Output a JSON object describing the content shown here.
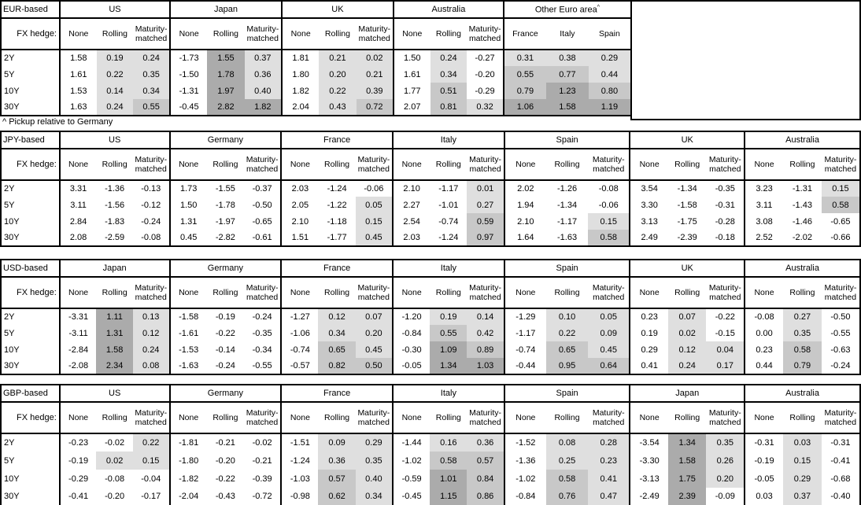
{
  "footnote": "^ Pickup relative to Germany",
  "fx_hedge_label": "FX hedge:",
  "hedge_cols": [
    "None",
    "Rolling",
    "Maturity-matched"
  ],
  "row_labels": [
    "2Y",
    "5Y",
    "10Y",
    "30Y"
  ],
  "shading": {
    "negative_color": "#ffffff",
    "bands": [
      {
        "min": 0.0,
        "color": "#dfdfdf"
      },
      {
        "min": 0.5,
        "color": "#c8c8c8"
      },
      {
        "min": 1.0,
        "color": "#ababab"
      }
    ]
  },
  "tables": [
    {
      "base_label": "EUR-based",
      "groups": [
        {
          "name": "US",
          "shade_cols": [
            1,
            2
          ],
          "rows": [
            [
              "1.58",
              "0.19",
              "0.24"
            ],
            [
              "1.61",
              "0.22",
              "0.35"
            ],
            [
              "1.53",
              "0.14",
              "0.34"
            ],
            [
              "1.63",
              "0.24",
              "0.55"
            ]
          ]
        },
        {
          "name": "Japan",
          "shade_cols": [
            1,
            2
          ],
          "rows": [
            [
              "-1.73",
              "1.55",
              "0.37"
            ],
            [
              "-1.50",
              "1.78",
              "0.36"
            ],
            [
              "-1.31",
              "1.97",
              "0.40"
            ],
            [
              "-0.45",
              "2.82",
              "1.82"
            ]
          ]
        },
        {
          "name": "UK",
          "shade_cols": [
            1,
            2
          ],
          "rows": [
            [
              "1.81",
              "0.21",
              "0.02"
            ],
            [
              "1.80",
              "0.20",
              "0.21"
            ],
            [
              "1.82",
              "0.22",
              "0.39"
            ],
            [
              "2.04",
              "0.43",
              "0.72"
            ]
          ]
        },
        {
          "name": "Australia",
          "shade_cols": [
            1,
            2
          ],
          "rows": [
            [
              "1.50",
              "0.24",
              "-0.27"
            ],
            [
              "1.61",
              "0.34",
              "-0.20"
            ],
            [
              "1.77",
              "0.51",
              "-0.29"
            ],
            [
              "2.07",
              "0.81",
              "0.32"
            ]
          ]
        },
        {
          "name": "Other Euro area",
          "superscript": "^",
          "cols": [
            "France",
            "Italy",
            "Spain"
          ],
          "shade_cols": [
            0,
            1,
            2
          ],
          "rows": [
            [
              "0.31",
              "0.38",
              "0.29"
            ],
            [
              "0.55",
              "0.77",
              "0.44"
            ],
            [
              "0.79",
              "1.23",
              "0.80"
            ],
            [
              "1.06",
              "1.58",
              "1.19"
            ]
          ]
        }
      ]
    },
    {
      "base_label": "JPY-based",
      "groups": [
        {
          "name": "US",
          "shade_cols": [
            1,
            2
          ],
          "rows": [
            [
              "3.31",
              "-1.36",
              "-0.13"
            ],
            [
              "3.11",
              "-1.56",
              "-0.12"
            ],
            [
              "2.84",
              "-1.83",
              "-0.24"
            ],
            [
              "2.08",
              "-2.59",
              "-0.08"
            ]
          ]
        },
        {
          "name": "Germany",
          "shade_cols": [
            1,
            2
          ],
          "rows": [
            [
              "1.73",
              "-1.55",
              "-0.37"
            ],
            [
              "1.50",
              "-1.78",
              "-0.50"
            ],
            [
              "1.31",
              "-1.97",
              "-0.65"
            ],
            [
              "0.45",
              "-2.82",
              "-0.61"
            ]
          ]
        },
        {
          "name": "France",
          "shade_cols": [
            1,
            2
          ],
          "rows": [
            [
              "2.03",
              "-1.24",
              "-0.06"
            ],
            [
              "2.05",
              "-1.22",
              "0.05"
            ],
            [
              "2.10",
              "-1.18",
              "0.15"
            ],
            [
              "1.51",
              "-1.77",
              "0.45"
            ]
          ]
        },
        {
          "name": "Italy",
          "shade_cols": [
            1,
            2
          ],
          "rows": [
            [
              "2.10",
              "-1.17",
              "0.01"
            ],
            [
              "2.27",
              "-1.01",
              "0.27"
            ],
            [
              "2.54",
              "-0.74",
              "0.59"
            ],
            [
              "2.03",
              "-1.24",
              "0.97"
            ]
          ]
        },
        {
          "name": "Spain",
          "shade_cols": [
            1,
            2
          ],
          "rows": [
            [
              "2.02",
              "-1.26",
              "-0.08"
            ],
            [
              "1.94",
              "-1.34",
              "-0.06"
            ],
            [
              "2.10",
              "-1.17",
              "0.15"
            ],
            [
              "1.64",
              "-1.63",
              "0.58"
            ]
          ]
        },
        {
          "name": "UK",
          "shade_cols": [
            1,
            2
          ],
          "rows": [
            [
              "3.54",
              "-1.34",
              "-0.35"
            ],
            [
              "3.30",
              "-1.58",
              "-0.31"
            ],
            [
              "3.13",
              "-1.75",
              "-0.28"
            ],
            [
              "2.49",
              "-2.39",
              "-0.18"
            ]
          ]
        },
        {
          "name": "Australia",
          "shade_cols": [
            1,
            2
          ],
          "rows": [
            [
              "3.23",
              "-1.31",
              "0.15"
            ],
            [
              "3.11",
              "-1.43",
              "0.58"
            ],
            [
              "3.08",
              "-1.46",
              "-0.65"
            ],
            [
              "2.52",
              "-2.02",
              "-0.66"
            ]
          ]
        }
      ]
    },
    {
      "base_label": "USD-based",
      "groups": [
        {
          "name": "Japan",
          "shade_cols": [
            1,
            2
          ],
          "rows": [
            [
              "-3.31",
              "1.11",
              "0.13"
            ],
            [
              "-3.11",
              "1.31",
              "0.12"
            ],
            [
              "-2.84",
              "1.58",
              "0.24"
            ],
            [
              "-2.08",
              "2.34",
              "0.08"
            ]
          ]
        },
        {
          "name": "Germany",
          "shade_cols": [
            1,
            2
          ],
          "rows": [
            [
              "-1.58",
              "-0.19",
              "-0.24"
            ],
            [
              "-1.61",
              "-0.22",
              "-0.35"
            ],
            [
              "-1.53",
              "-0.14",
              "-0.34"
            ],
            [
              "-1.63",
              "-0.24",
              "-0.55"
            ]
          ]
        },
        {
          "name": "France",
          "shade_cols": [
            1,
            2
          ],
          "rows": [
            [
              "-1.27",
              "0.12",
              "0.07"
            ],
            [
              "-1.06",
              "0.34",
              "0.20"
            ],
            [
              "-0.74",
              "0.65",
              "0.45"
            ],
            [
              "-0.57",
              "0.82",
              "0.50"
            ]
          ]
        },
        {
          "name": "Italy",
          "shade_cols": [
            1,
            2
          ],
          "rows": [
            [
              "-1.20",
              "0.19",
              "0.14"
            ],
            [
              "-0.84",
              "0.55",
              "0.42"
            ],
            [
              "-0.30",
              "1.09",
              "0.89"
            ],
            [
              "-0.05",
              "1.34",
              "1.03"
            ]
          ]
        },
        {
          "name": "Spain",
          "shade_cols": [
            1,
            2
          ],
          "rows": [
            [
              "-1.29",
              "0.10",
              "0.05"
            ],
            [
              "-1.17",
              "0.22",
              "0.09"
            ],
            [
              "-0.74",
              "0.65",
              "0.45"
            ],
            [
              "-0.44",
              "0.95",
              "0.64"
            ]
          ]
        },
        {
          "name": "UK",
          "shade_cols": [
            1,
            2
          ],
          "rows": [
            [
              "0.23",
              "0.07",
              "-0.22"
            ],
            [
              "0.19",
              "0.02",
              "-0.15"
            ],
            [
              "0.29",
              "0.12",
              "0.04"
            ],
            [
              "0.41",
              "0.24",
              "0.17"
            ]
          ]
        },
        {
          "name": "Australia",
          "shade_cols": [
            1,
            2
          ],
          "rows": [
            [
              "-0.08",
              "0.27",
              "-0.50"
            ],
            [
              "0.00",
              "0.35",
              "-0.55"
            ],
            [
              "0.23",
              "0.58",
              "-0.63"
            ],
            [
              "0.44",
              "0.79",
              "-0.24"
            ]
          ]
        }
      ]
    },
    {
      "base_label": "GBP-based",
      "groups": [
        {
          "name": "US",
          "shade_cols": [
            1,
            2
          ],
          "rows": [
            [
              "-0.23",
              "-0.02",
              "0.22"
            ],
            [
              "-0.19",
              "0.02",
              "0.15"
            ],
            [
              "-0.29",
              "-0.08",
              "-0.04"
            ],
            [
              "-0.41",
              "-0.20",
              "-0.17"
            ]
          ]
        },
        {
          "name": "Germany",
          "shade_cols": [
            1,
            2
          ],
          "rows": [
            [
              "-1.81",
              "-0.21",
              "-0.02"
            ],
            [
              "-1.80",
              "-0.20",
              "-0.21"
            ],
            [
              "-1.82",
              "-0.22",
              "-0.39"
            ],
            [
              "-2.04",
              "-0.43",
              "-0.72"
            ]
          ]
        },
        {
          "name": "France",
          "shade_cols": [
            1,
            2
          ],
          "rows": [
            [
              "-1.51",
              "0.09",
              "0.29"
            ],
            [
              "-1.24",
              "0.36",
              "0.35"
            ],
            [
              "-1.03",
              "0.57",
              "0.40"
            ],
            [
              "-0.98",
              "0.62",
              "0.34"
            ]
          ]
        },
        {
          "name": "Italy",
          "shade_cols": [
            1,
            2
          ],
          "rows": [
            [
              "-1.44",
              "0.16",
              "0.36"
            ],
            [
              "-1.02",
              "0.58",
              "0.57"
            ],
            [
              "-0.59",
              "1.01",
              "0.84"
            ],
            [
              "-0.45",
              "1.15",
              "0.86"
            ]
          ]
        },
        {
          "name": "Spain",
          "shade_cols": [
            1,
            2
          ],
          "rows": [
            [
              "-1.52",
              "0.08",
              "0.28"
            ],
            [
              "-1.36",
              "0.25",
              "0.23"
            ],
            [
              "-1.02",
              "0.58",
              "0.41"
            ],
            [
              "-0.84",
              "0.76",
              "0.47"
            ]
          ]
        },
        {
          "name": "Japan",
          "shade_cols": [
            1,
            2
          ],
          "rows": [
            [
              "-3.54",
              "1.34",
              "0.35"
            ],
            [
              "-3.30",
              "1.58",
              "0.26"
            ],
            [
              "-3.13",
              "1.75",
              "0.20"
            ],
            [
              "-2.49",
              "2.39",
              "-0.09"
            ]
          ]
        },
        {
          "name": "Australia",
          "shade_cols": [
            1,
            2
          ],
          "rows": [
            [
              "-0.31",
              "0.03",
              "-0.31"
            ],
            [
              "-0.19",
              "0.15",
              "-0.41"
            ],
            [
              "-0.05",
              "0.29",
              "-0.68"
            ],
            [
              "0.03",
              "0.37",
              "-0.40"
            ]
          ]
        }
      ]
    }
  ]
}
